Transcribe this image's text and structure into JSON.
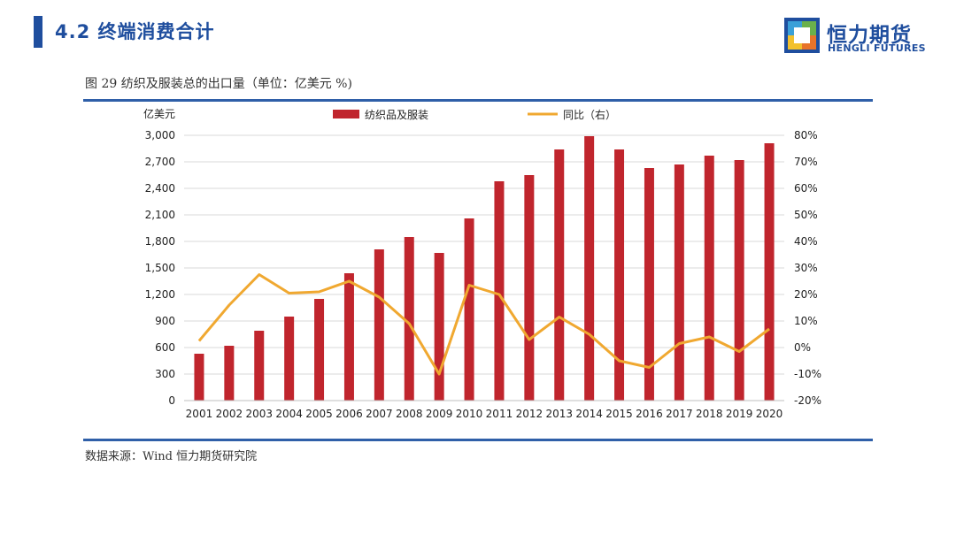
{
  "header": {
    "title": "4.2 终端消费合计"
  },
  "logo": {
    "cn": "恒力期货",
    "en": "HENGLI FUTURES"
  },
  "figure": {
    "title": "图 29 纺织及服装总的出口量（单位：亿美元 %)"
  },
  "source": "数据来源：Wind 恒力期货研究院",
  "colors": {
    "bar": "#c0252d",
    "line": "#f0a830",
    "accent": "#1f4e9e"
  },
  "chart_data": {
    "type": "bar",
    "categories": [
      "2001",
      "2002",
      "2003",
      "2004",
      "2005",
      "2006",
      "2007",
      "2008",
      "2009",
      "2010",
      "2011",
      "2012",
      "2013",
      "2014",
      "2015",
      "2016",
      "2017",
      "2018",
      "2019",
      "2020"
    ],
    "series": [
      {
        "name": "纺织品及服装",
        "type": "bar",
        "axis": "left",
        "values": [
          530,
          620,
          790,
          950,
          1150,
          1440,
          1710,
          1850,
          1670,
          2060,
          2480,
          2550,
          2840,
          2990,
          2840,
          2630,
          2670,
          2770,
          2720,
          2910
        ]
      },
      {
        "name": "同比（右）",
        "type": "line",
        "axis": "right",
        "values": [
          2.5,
          16,
          27.5,
          20.5,
          21,
          25,
          19,
          9,
          -10,
          23.5,
          20,
          3,
          11.5,
          5,
          -5,
          -7.5,
          1.5,
          4,
          -1.5,
          7
        ]
      }
    ],
    "left_axis": {
      "label": "亿美元",
      "ylim": [
        0,
        3000
      ],
      "ticks": [
        0,
        300,
        600,
        900,
        1200,
        1500,
        1800,
        2100,
        2400,
        2700,
        3000
      ],
      "tick_labels": [
        "0",
        "300",
        "600",
        "900",
        "1,200",
        "1,500",
        "1,800",
        "2,100",
        "2,400",
        "2,700",
        "3,000"
      ]
    },
    "right_axis": {
      "ylim": [
        -20,
        80
      ],
      "ticks": [
        -20,
        -10,
        0,
        10,
        20,
        30,
        40,
        50,
        60,
        70,
        80
      ],
      "tick_labels": [
        "-20%",
        "-10%",
        "0%",
        "10%",
        "20%",
        "30%",
        "40%",
        "50%",
        "60%",
        "70%",
        "80%"
      ]
    },
    "legend_position": "top-center",
    "grid": true
  }
}
